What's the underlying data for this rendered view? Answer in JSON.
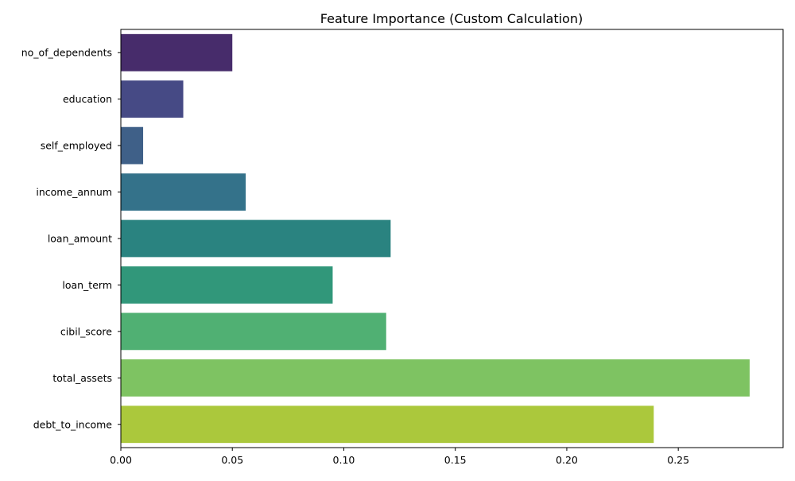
{
  "chart_data": {
    "type": "bar",
    "orientation": "horizontal",
    "title": "Feature Importance (Custom Calculation)",
    "xlabel": "",
    "ylabel": "",
    "xlim": [
      0,
      0.297
    ],
    "x_ticks": [
      0,
      0.05,
      0.1,
      0.15,
      0.2,
      0.25
    ],
    "x_tick_labels": [
      "0.00",
      "0.05",
      "0.10",
      "0.15",
      "0.20",
      "0.25"
    ],
    "grid": false,
    "categories": [
      "no_of_dependents",
      "education",
      "self_employed",
      "income_annum",
      "loan_amount",
      "loan_term",
      "cibil_score",
      "total_assets",
      "debt_to_income"
    ],
    "values": [
      0.05,
      0.028,
      0.01,
      0.056,
      0.121,
      0.095,
      0.119,
      0.282,
      0.239
    ],
    "colors": [
      "#472c6b",
      "#464a85",
      "#3f6088",
      "#34728a",
      "#2a8380",
      "#31977a",
      "#50b073",
      "#7ec362",
      "#abc83c"
    ]
  }
}
